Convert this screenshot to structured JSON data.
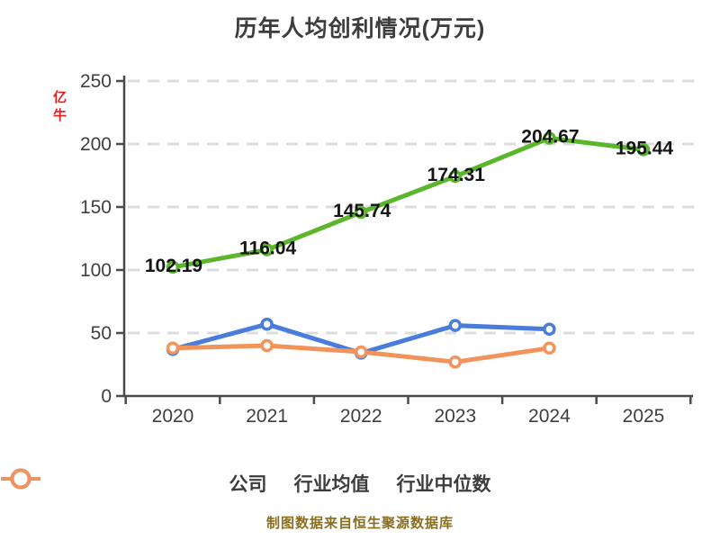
{
  "page": {
    "title": "历年人均创利情况(万元)",
    "watermark": "亿牛",
    "source_caption": "制图数据来自恒生聚源数据库"
  },
  "chart_data": {
    "type": "line",
    "title": "历年人均创利情况(万元)",
    "categories": [
      "2020",
      "2021",
      "2022",
      "2023",
      "2024",
      "2025"
    ],
    "series": [
      {
        "name": "公司",
        "color": "#5bb62c",
        "values": [
          102.19,
          116.04,
          145.74,
          174.31,
          204.67,
          195.44
        ],
        "point_labels": [
          "102.19",
          "116.04",
          "145.74",
          "174.31",
          "204.67",
          "195.44"
        ]
      },
      {
        "name": "行业均值",
        "color": "#4a7cdb",
        "values": [
          37,
          57,
          34,
          56,
          53,
          null
        ],
        "point_labels": null
      },
      {
        "name": "行业中位数",
        "color": "#f2935c",
        "values": [
          38,
          40,
          35,
          27,
          38,
          null
        ],
        "point_labels": null
      }
    ],
    "ylim": [
      0,
      250
    ],
    "yticks": [
      0,
      50,
      100,
      150,
      200,
      250
    ],
    "xlabel": "",
    "ylabel": "",
    "grid": "horizontal-dashed",
    "legend_position": "bottom"
  },
  "colors": {
    "background": "#ffffff",
    "axis": "#4a4a4a",
    "tick_label": "#3f3f3f",
    "gridline": "#dcdcdc",
    "value_label": "#151515",
    "title": "#3d3d3d",
    "caption": "#8a6d1e",
    "watermark": "#e01f1f",
    "marker_fill": "#ffffff"
  }
}
